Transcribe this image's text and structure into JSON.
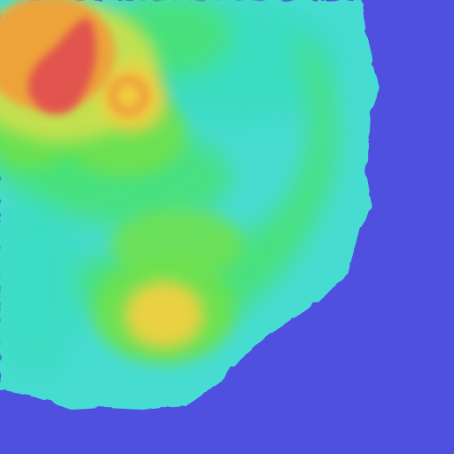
{
  "map": {
    "type": "heatmap",
    "colors": {
      "background": "#5050e0",
      "level_1": "#46dcd2",
      "level_2": "#3cdcc0",
      "level_3": "#48e078",
      "level_4": "#6ee050",
      "level_5": "#c8e050",
      "level_6": "#f0d040",
      "level_7": "#f0a038",
      "level_8": "#e05050"
    }
  }
}
